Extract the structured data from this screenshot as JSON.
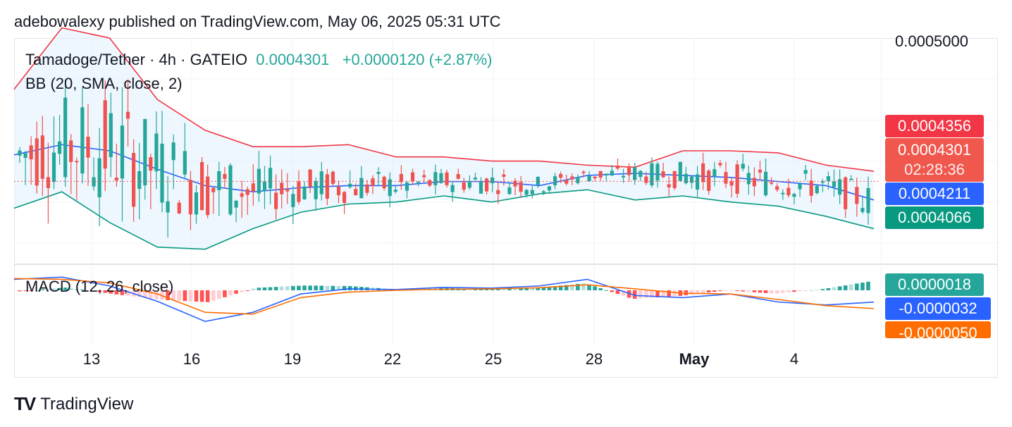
{
  "header": {
    "published": "adebowalexy published on TradingView.com, May 06, 2025 05:31 UTC"
  },
  "legend": {
    "symbol": "Tamadoge/Tether · 4h · GATEIO",
    "price": "0.0004301",
    "change": "+0.0000120 (+2.87%)",
    "bb": "BB (20, SMA, close, 2)",
    "macd": "MACD (12, 26, close)"
  },
  "price_axis": {
    "top_label": "0.0005000"
  },
  "badges": {
    "bb_upper": "0.0004356",
    "last_price": "0.0004301",
    "countdown": "02:28:36",
    "bb_basis": "0.0004211",
    "bb_lower": "0.0004066",
    "macd_hist": "0.0000018",
    "macd_line": "-0.0000032",
    "macd_signal": "-0.0000050"
  },
  "colors": {
    "up": "#26a69a",
    "down": "#ef5350",
    "bb_upper": "#f23645",
    "bb_basis": "#2962ff",
    "bb_lower": "#089981",
    "bb_fill": "#e3f2fd",
    "macd_line": "#2962ff",
    "signal_line": "#ff6d00",
    "hist_up": "#26a69a",
    "hist_up_light": "#b2dfdb",
    "hist_down": "#ff5252",
    "hist_down_light": "#ffcdd2"
  },
  "chart_data": {
    "type": "candlestick",
    "title": "Tamadoge/Tether · 4h · GATEIO",
    "x_tick_labels": [
      "13",
      "16",
      "19",
      "22",
      "25",
      "28",
      "May",
      "4"
    ],
    "y_range": [
      0.00039,
      0.0005
    ],
    "last_price": 0.0004301,
    "bollinger": {
      "upper": [
        0.000475,
        0.000505,
        0.0005,
        0.00047,
        0.000455,
        0.000447,
        0.000447,
        0.000448,
        0.000442,
        0.000442,
        0.00044,
        0.00044,
        0.000438,
        0.000437,
        0.000445,
        0.000445,
        0.000444,
        0.000438,
        0.000435
      ],
      "basis": [
        0.000443,
        0.000448,
        0.000445,
        0.000436,
        0.000428,
        0.000425,
        0.000427,
        0.000428,
        0.000428,
        0.00043,
        0.00043,
        0.000428,
        0.000433,
        0.000434,
        0.000433,
        0.000432,
        0.00043,
        0.000428,
        0.000421
      ],
      "lower": [
        0.000417,
        0.000425,
        0.00041,
        0.000398,
        0.000397,
        0.000407,
        0.000415,
        0.000419,
        0.00042,
        0.000423,
        0.00042,
        0.000424,
        0.000426,
        0.000421,
        0.000423,
        0.00042,
        0.000418,
        0.000413,
        0.000407
      ]
    },
    "macd": {
      "macd_line": [
        3e-06,
        3.6e-06,
        1.2e-06,
        -3e-06,
        -8.5e-06,
        -6e-06,
        -1e-06,
        4e-07,
        2e-07,
        8e-07,
        6e-07,
        1.2e-06,
        3e-06,
        -1.4e-06,
        -2e-06,
        -1e-06,
        -3.2e-06,
        -4e-06,
        -3.2e-06
      ],
      "signal": [
        3.2e-06,
        3e-06,
        2e-06,
        -1e-06,
        -6e-06,
        -6.5e-06,
        -2e-06,
        -5e-07,
        0.0,
        3e-07,
        4e-07,
        7e-07,
        1.5e-06,
        4e-07,
        -8e-07,
        -1e-06,
        -2.5e-06,
        -4.2e-06,
        -5e-06
      ]
    },
    "macd_last": {
      "histogram": 1.8e-06,
      "macd": -3.2e-06,
      "signal": -5e-06
    },
    "bb_last": {
      "upper": 0.0004356,
      "basis": 0.0004211,
      "lower": 0.0004066
    }
  },
  "footer": {
    "brand": "TradingView",
    "logo_text": "TV"
  }
}
